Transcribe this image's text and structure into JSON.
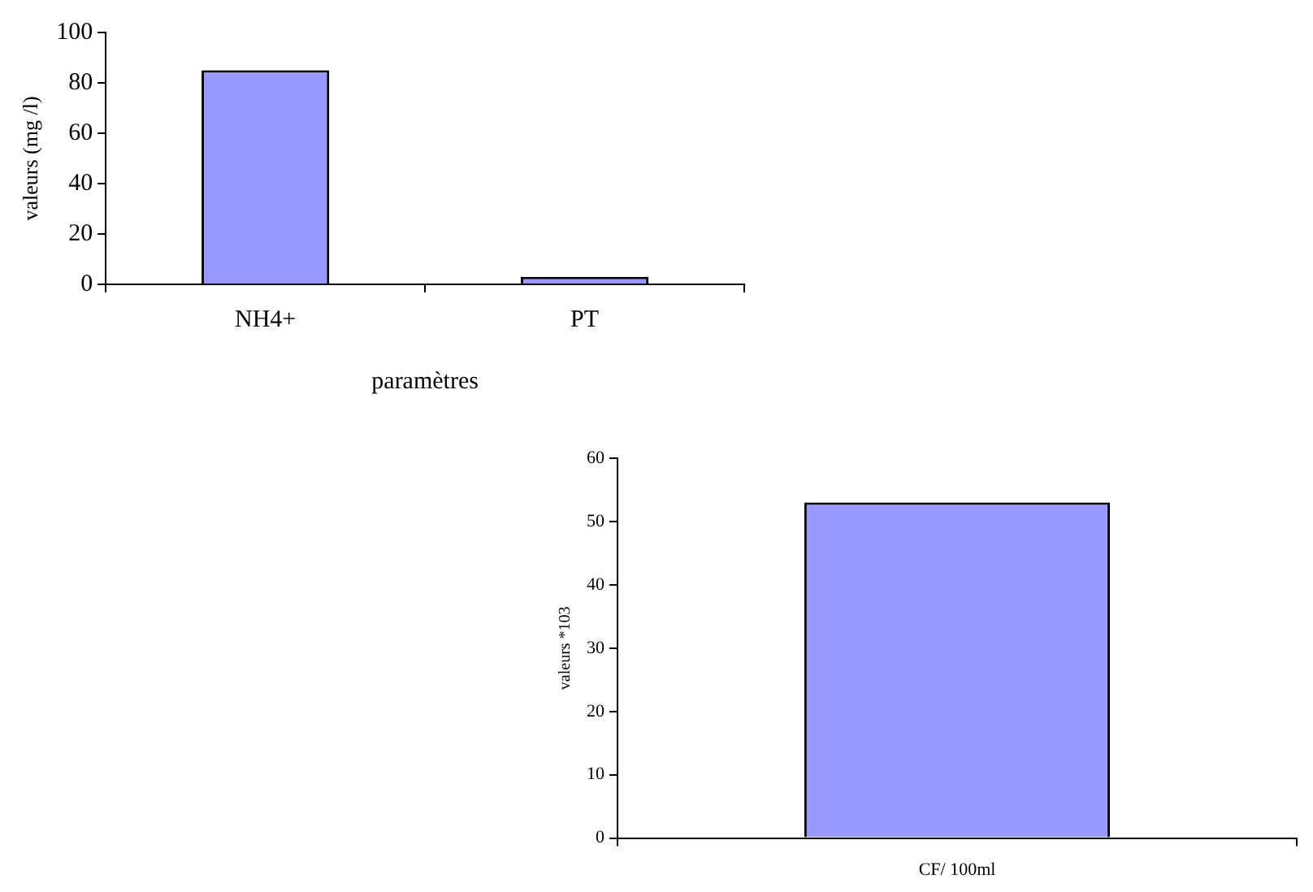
{
  "chart_data": [
    {
      "type": "bar",
      "categories": [
        "NH4+",
        "PT"
      ],
      "values": [
        85,
        3
      ],
      "color": "#9999ff",
      "xlabel": "paramètres",
      "ylabel": "valeurs (mg /l)",
      "ylim": [
        0,
        100
      ],
      "yticks": [
        0,
        20,
        40,
        60,
        80,
        100
      ],
      "grid": false,
      "legend": false
    },
    {
      "type": "bar",
      "categories": [
        "CF/ 100ml"
      ],
      "values": [
        53
      ],
      "color": "#9999ff",
      "ylabel": "valeurs *103",
      "ylim": [
        0,
        60
      ],
      "yticks": [
        0,
        10,
        20,
        30,
        40,
        50,
        60
      ],
      "grid": false,
      "legend": false
    }
  ]
}
